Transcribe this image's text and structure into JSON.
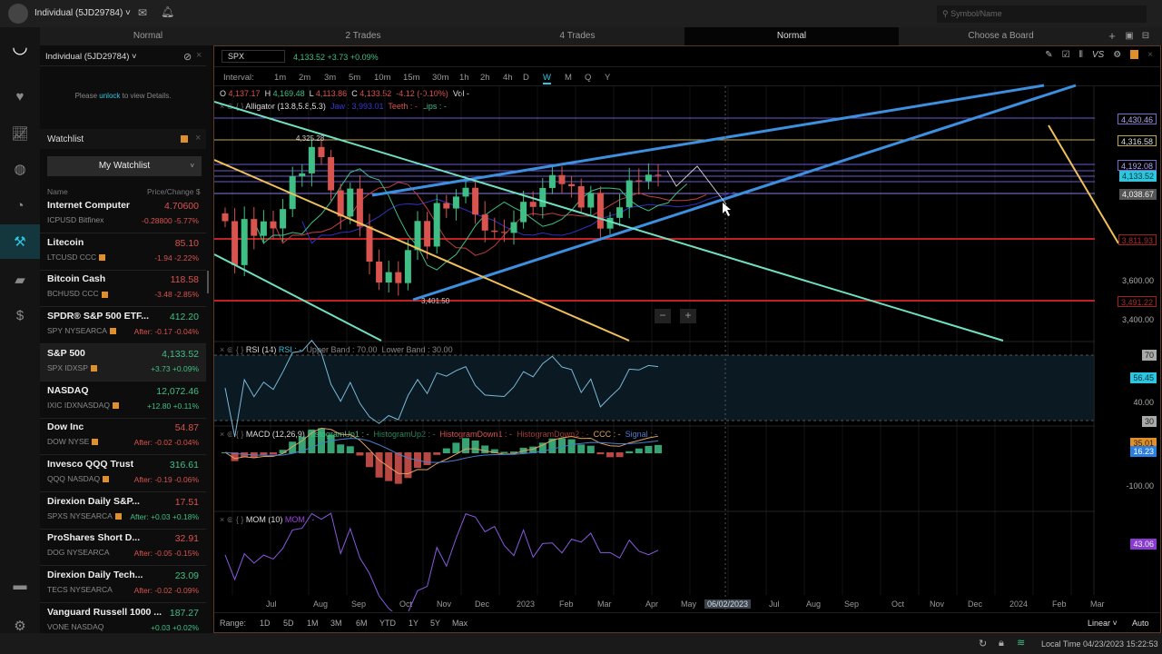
{
  "topbar": {
    "account": "Individual (5JD29784)",
    "search_placeholder": "Symbol/Name"
  },
  "rail": {
    "items": [
      "logo",
      "favorites-icon",
      "markets-icon",
      "globe-icon",
      "chat-icon",
      "trade-icon",
      "wallet-icon",
      "cash-icon",
      "feedback-icon",
      "settings-icon"
    ],
    "active": "trade-icon"
  },
  "boards": {
    "tabs": [
      "Normal",
      "2 Trades",
      "4 Trades",
      "Normal",
      "Choose a Board"
    ],
    "active_index": 3
  },
  "account_panel": {
    "title": "Individual (5JD29784)",
    "unlock_pre": "Please ",
    "unlock_link": "unlock",
    "unlock_post": " to view Details."
  },
  "watchlist": {
    "title": "Watchlist",
    "selector": "My Watchlist",
    "col_name": "Name",
    "col_price": "Price/Change",
    "col_unit": "$",
    "items": [
      {
        "name": "Internet Computer",
        "sub": "ICPUSD Bitfinex",
        "price": "4.70600",
        "change": "-0.28800 -5.77%",
        "dir": "dn",
        "badge": false,
        "sel": false
      },
      {
        "name": "Litecoin",
        "sub": "LTCUSD CCC",
        "price": "85.10",
        "change": "-1.94 -2.22%",
        "dir": "dn",
        "badge": true,
        "sel": false
      },
      {
        "name": "Bitcoin Cash",
        "sub": "BCHUSD CCC",
        "price": "118.58",
        "change": "-3.48 -2.85%",
        "dir": "dn",
        "badge": true,
        "sel": false
      },
      {
        "name": "SPDR® S&P 500 ETF...",
        "sub": "SPY NYSEARCA",
        "price": "412.20",
        "change": "After: -0.17 -0.04%",
        "dir": "up",
        "cdir": "dn",
        "badge": true,
        "sel": false
      },
      {
        "name": "S&P 500",
        "sub": "SPX IDXSP",
        "price": "4,133.52",
        "change": "+3.73 +0.09%",
        "dir": "up",
        "badge": true,
        "sel": true
      },
      {
        "name": "NASDAQ",
        "sub": "IXIC IDXNASDAQ",
        "price": "12,072.46",
        "change": "+12.80 +0.11%",
        "dir": "up",
        "badge": true,
        "sel": false
      },
      {
        "name": "Dow Inc",
        "sub": "DOW NYSE",
        "price": "54.87",
        "change": "After: -0.02 -0.04%",
        "dir": "dn",
        "badge": true,
        "sel": false
      },
      {
        "name": "Invesco QQQ Trust",
        "sub": "QQQ NASDAQ",
        "price": "316.61",
        "change": "After: -0.19 -0.06%",
        "dir": "up",
        "cdir": "dn",
        "badge": true,
        "sel": false
      },
      {
        "name": "Direxion Daily S&P...",
        "sub": "SPXS NYSEARCA",
        "price": "17.51",
        "change": "After: +0.03 +0.18%",
        "dir": "dn",
        "cdir": "up",
        "badge": true,
        "sel": false
      },
      {
        "name": "ProShares Short D...",
        "sub": "DOG NYSEARCA",
        "price": "32.91",
        "change": "After: -0.05 -0.15%",
        "dir": "dn",
        "badge": false,
        "sel": false
      },
      {
        "name": "Direxion Daily Tech...",
        "sub": "TECS NYSEARCA",
        "price": "23.09",
        "change": "After: -0.02 -0.09%",
        "dir": "up",
        "cdir": "dn",
        "badge": false,
        "sel": false
      },
      {
        "name": "Vanguard Russell 1000 ...",
        "sub": "VONE NASDAQ",
        "price": "187.27",
        "change": "+0.03 +0.02%",
        "dir": "up",
        "badge": false,
        "sel": false
      }
    ]
  },
  "chart": {
    "symbol": "SPX",
    "quote": "4,133.52 +3.73 +0.09%",
    "interval_label": "Interval:",
    "intervals": [
      "1m",
      "2m",
      "3m",
      "5m",
      "10m",
      "15m",
      "30m",
      "1h",
      "2h",
      "4h",
      "D",
      "W",
      "M",
      "Q",
      "Y"
    ],
    "active_interval": "W",
    "ohlc": {
      "o": "4,137.17",
      "h": "4,169.48",
      "l": "4,113.86",
      "c": "4,133.52",
      "chg": "-4.12 (-0.10%)",
      "vol": "Vol -"
    },
    "alligator": {
      "label": "Alligator (13.8,5.8,5.3)",
      "jaw": "Jaw : 3,993.01",
      "teeth": "Teeth : -",
      "lips": "Lips : -"
    },
    "annotations": [
      "4,325.28",
      "3,401.50"
    ],
    "price_axis": [
      {
        "v": "4,430.46",
        "kind": "purple"
      },
      {
        "v": "4,316.58",
        "kind": "yellow"
      },
      {
        "v": "4,192.08",
        "kind": "purple"
      },
      {
        "v": "4,133.52",
        "kind": "last"
      },
      {
        "v": "4,038.67",
        "kind": "gray"
      },
      {
        "v": "3,811.93",
        "kind": "red"
      },
      {
        "v": "3,600.00",
        "kind": "plain"
      },
      {
        "v": "3,491.22",
        "kind": "red"
      },
      {
        "v": "3,400.00",
        "kind": "plain"
      }
    ],
    "rsi": {
      "label": "RSI (14)",
      "value": "RSI : -",
      "upper": "Upper Band : 70.00",
      "lower": "Lower Band : 30.00",
      "axis": [
        "70",
        "40.00",
        "30"
      ],
      "last": "56.45"
    },
    "macd": {
      "label": "MACD (12,26,9)",
      "legend": [
        {
          "t": "HistogramUp1 : -",
          "c": "#3fbf86"
        },
        {
          "t": "HistogramUp2 : -",
          "c": "#2a8a5e"
        },
        {
          "t": "HistogramDown1 : -",
          "c": "#d9534f"
        },
        {
          "t": "HistogramDown2 : -",
          "c": "#a33a36"
        },
        {
          "t": "CCC : -",
          "c": "#e0a060"
        },
        {
          "t": "Signal : -",
          "c": "#4a7fd0"
        }
      ],
      "axis": [
        "-100.00"
      ],
      "last1": "35.01",
      "last2": "16.23"
    },
    "mom": {
      "label": "MOM (10)",
      "value": "MOM : -",
      "last": "43.06"
    },
    "x_labels": [
      "Jul",
      "Aug",
      "Sep",
      "Oct",
      "Nov",
      "Dec",
      "2023",
      "Feb",
      "Mar",
      "Apr",
      "May",
      "06/02/2023",
      "Jul",
      "Aug",
      "Sep",
      "Oct",
      "Nov",
      "Dec",
      "2024",
      "Feb",
      "Mar"
    ],
    "range_label": "Range:",
    "ranges": [
      "1D",
      "5D",
      "1M",
      "3M",
      "6M",
      "YTD",
      "1Y",
      "5Y",
      "Max"
    ],
    "scale": "Linear",
    "auto": "Auto",
    "zoom_out": "−",
    "zoom_in": "+",
    "weekly_closes": [
      3900,
      3675,
      3911,
      3825,
      3899,
      3863,
      3962,
      4130,
      4145,
      4280,
      4228,
      4058,
      3924,
      4067,
      3873,
      3693,
      3586,
      3639,
      3583,
      3752,
      3901,
      3770,
      3993,
      3965,
      4026,
      4071,
      3934,
      3852,
      3845,
      3840,
      3895,
      3999,
      3973,
      4070,
      4136,
      4090,
      4079,
      3970,
      4045,
      3862,
      3917,
      3971,
      4109,
      4105,
      4138,
      4133.52
    ],
    "colors": {
      "up": "#3fbf86",
      "down": "#d9534f",
      "accent": "#2ec5e0",
      "trend_blue": "#3d8fe0",
      "trend_yellow": "#f0c05a",
      "trend_teal": "#6fe0c0"
    }
  },
  "status": {
    "local_time": "Local Time 04/23/2023 15:22:53"
  }
}
